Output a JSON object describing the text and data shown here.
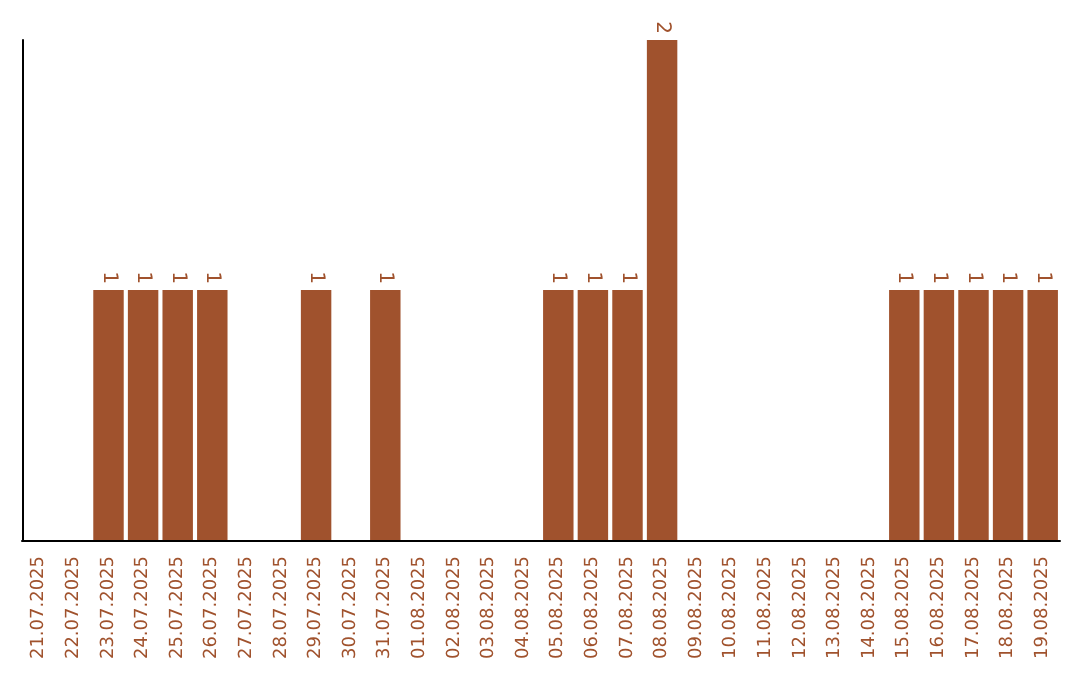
{
  "chart_data": {
    "type": "bar",
    "categories": [
      "21.07.2025",
      "22.07.2025",
      "23.07.2025",
      "24.07.2025",
      "25.07.2025",
      "26.07.2025",
      "27.07.2025",
      "28.07.2025",
      "29.07.2025",
      "30.07.2025",
      "31.07.2025",
      "01.08.2025",
      "02.08.2025",
      "03.08.2025",
      "04.08.2025",
      "05.08.2025",
      "06.08.2025",
      "07.08.2025",
      "08.08.2025",
      "09.08.2025",
      "10.08.2025",
      "11.08.2025",
      "12.08.2025",
      "13.08.2025",
      "14.08.2025",
      "15.08.2025",
      "16.08.2025",
      "17.08.2025",
      "18.08.2025",
      "19.08.2025"
    ],
    "values": [
      0,
      0,
      1,
      1,
      1,
      1,
      0,
      0,
      1,
      0,
      1,
      0,
      0,
      0,
      0,
      1,
      1,
      1,
      2,
      0,
      0,
      0,
      0,
      0,
      0,
      1,
      1,
      1,
      1,
      1
    ],
    "value_labels": [
      null,
      null,
      "1",
      "1",
      "1",
      "1",
      null,
      null,
      "1",
      null,
      "1",
      null,
      null,
      null,
      null,
      "1",
      "1",
      "1",
      "2",
      null,
      null,
      null,
      null,
      null,
      null,
      "1",
      "1",
      "1",
      "1",
      "1"
    ],
    "color": "#a0522d",
    "tick_labels": "x"
  }
}
